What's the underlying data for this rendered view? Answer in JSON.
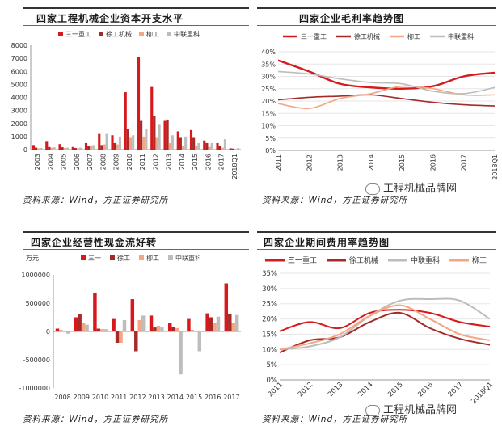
{
  "panels": {
    "tl": {
      "title": "四家工程机械企业资本开支水平",
      "source": "资料来源：Wind，方正证券研究所"
    },
    "tr": {
      "title": "四家企业毛利率趋势图",
      "source": "资料来源：Wind，方正证券研究所"
    },
    "bl": {
      "title": "四家企业经营性现金流好转",
      "source": "资料来源：Wind，方正证券研究所"
    },
    "br": {
      "title": "四家企业期间费用率趋势图",
      "source": "资料来源：Wind，方正证券研究所"
    }
  },
  "watermark": "工程机械品牌网",
  "colors": {
    "sany": "#d7191c",
    "xcmg": "#a52a2a",
    "liugong": "#f4a582",
    "zoomlion": "#bdbdbd"
  },
  "chart_data": [
    {
      "id": "capex",
      "type": "bar",
      "title": "四家工程机械企业资本开支水平",
      "categories": [
        "2003",
        "2004",
        "2005",
        "2006",
        "2007",
        "2008",
        "2009",
        "2010",
        "2011",
        "2012",
        "2013",
        "2014",
        "2015",
        "2016",
        "2017",
        "2018Q1"
      ],
      "ylim": [
        0,
        8000
      ],
      "yticks": [
        0,
        1000,
        2000,
        3000,
        4000,
        5000,
        6000,
        7000,
        8000
      ],
      "series": [
        {
          "name": "三一重工",
          "values": [
            350,
            600,
            420,
            200,
            500,
            1200,
            1100,
            4400,
            7100,
            4800,
            2200,
            1400,
            1500,
            700,
            500,
            100
          ]
        },
        {
          "name": "徐工机械",
          "values": [
            150,
            200,
            180,
            120,
            300,
            350,
            500,
            1600,
            2200,
            2600,
            2300,
            900,
            900,
            500,
            300,
            80
          ]
        },
        {
          "name": "柳工",
          "values": [
            100,
            150,
            120,
            100,
            250,
            400,
            400,
            900,
            1000,
            900,
            500,
            300,
            300,
            200,
            150,
            50
          ]
        },
        {
          "name": "中联重科",
          "values": [
            120,
            180,
            150,
            150,
            350,
            1200,
            1000,
            1100,
            1600,
            1900,
            1100,
            1000,
            500,
            500,
            800,
            120
          ]
        }
      ]
    },
    {
      "id": "gross_margin",
      "type": "line",
      "title": "四家企业毛利率趋势图",
      "categories": [
        "2011",
        "2012",
        "2013",
        "2014",
        "2015",
        "2016",
        "2017",
        "2018Q1"
      ],
      "ylim": [
        0,
        40
      ],
      "yticks": [
        "0%",
        "5%",
        "10%",
        "15%",
        "20%",
        "25%",
        "30%",
        "35%",
        "40%"
      ],
      "series": [
        {
          "name": "三一重工",
          "values": [
            36.5,
            32,
            27,
            25.5,
            25,
            26,
            30,
            31.5
          ]
        },
        {
          "name": "徐工机械",
          "values": [
            20.5,
            21.5,
            22,
            22.5,
            21,
            19.5,
            18.5,
            18
          ]
        },
        {
          "name": "柳工",
          "values": [
            19,
            17,
            21,
            23,
            26,
            25,
            22.5,
            22.5
          ]
        },
        {
          "name": "中联重科",
          "values": [
            32,
            31,
            29,
            27.5,
            27,
            24,
            23,
            25.5
          ]
        }
      ]
    },
    {
      "id": "op_cashflow",
      "type": "bar",
      "title": "四家企业经营性现金流好转",
      "unit": "万元",
      "categories": [
        "2008",
        "2009",
        "2010",
        "2011",
        "2012",
        "2013",
        "2014",
        "2015",
        "2016",
        "2017"
      ],
      "ylim": [
        -1000000,
        1000000
      ],
      "yticks": [
        "-1000000",
        "-500000",
        "0",
        "500000",
        "1000000"
      ],
      "series": [
        {
          "name": "三一",
          "values": [
            50000,
            250000,
            680000,
            220000,
            570000,
            280000,
            150000,
            220000,
            320000,
            850000
          ]
        },
        {
          "name": "徐工",
          "values": [
            20000,
            300000,
            50000,
            -200000,
            -350000,
            70000,
            80000,
            20000,
            250000,
            300000
          ]
        },
        {
          "name": "柳工",
          "values": [
            10000,
            150000,
            40000,
            -200000,
            200000,
            100000,
            60000,
            10000,
            150000,
            150000
          ]
        },
        {
          "name": "中联重科",
          "values": [
            -40000,
            120000,
            40000,
            200000,
            280000,
            70000,
            -760000,
            -350000,
            260000,
            290000
          ]
        }
      ]
    },
    {
      "id": "expense_ratio",
      "type": "line",
      "title": "四家企业期间费用率趋势图",
      "categories": [
        "2011",
        "2012",
        "2013",
        "2014",
        "2015",
        "2016",
        "2017",
        "2018Q1"
      ],
      "ylim": [
        0,
        35
      ],
      "yticks": [
        "0%",
        "5%",
        "10%",
        "15%",
        "20%",
        "25%",
        "30%",
        "35%"
      ],
      "series": [
        {
          "name": "三一重工",
          "values": [
            16,
            19,
            17,
            22,
            23,
            22,
            19,
            17.5
          ]
        },
        {
          "name": "徐工机械",
          "values": [
            9,
            13,
            14,
            19,
            22,
            17,
            13.5,
            11.5
          ]
        },
        {
          "name": "中联重科",
          "values": [
            10,
            11,
            14,
            21,
            26,
            26.5,
            26,
            20
          ]
        },
        {
          "name": "柳工",
          "values": [
            10,
            12,
            15,
            21,
            24.5,
            20,
            15,
            13
          ]
        }
      ]
    }
  ]
}
